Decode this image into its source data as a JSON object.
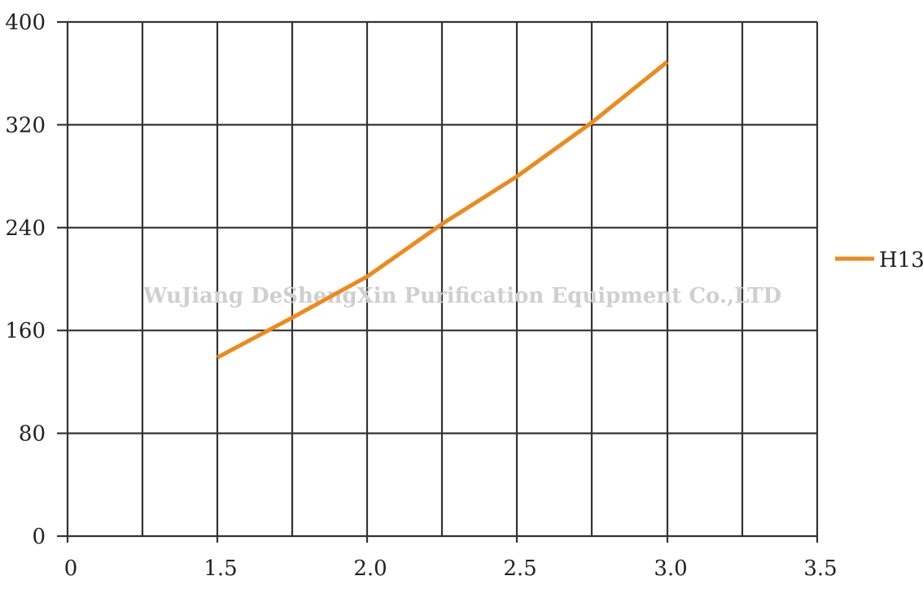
{
  "chart_data": {
    "type": "line",
    "x_ticks": [
      "0",
      "1.5",
      "2.0",
      "2.5",
      "3.0",
      "3.5"
    ],
    "y_ticks": [
      "0",
      "80",
      "160",
      "240",
      "320",
      "400"
    ],
    "ylim": [
      0,
      400
    ],
    "grid": true,
    "legend_position": "right",
    "watermark": "WuJiang DeShengXin  Purification  Equipment  Co.,LTD",
    "series": [
      {
        "name": "H13",
        "color": "#EE8A1B",
        "x": [
          1.5,
          1.75,
          2.0,
          2.25,
          2.5,
          2.75,
          3.0
        ],
        "y": [
          139,
          170,
          202,
          243,
          280,
          322,
          369
        ]
      }
    ]
  }
}
